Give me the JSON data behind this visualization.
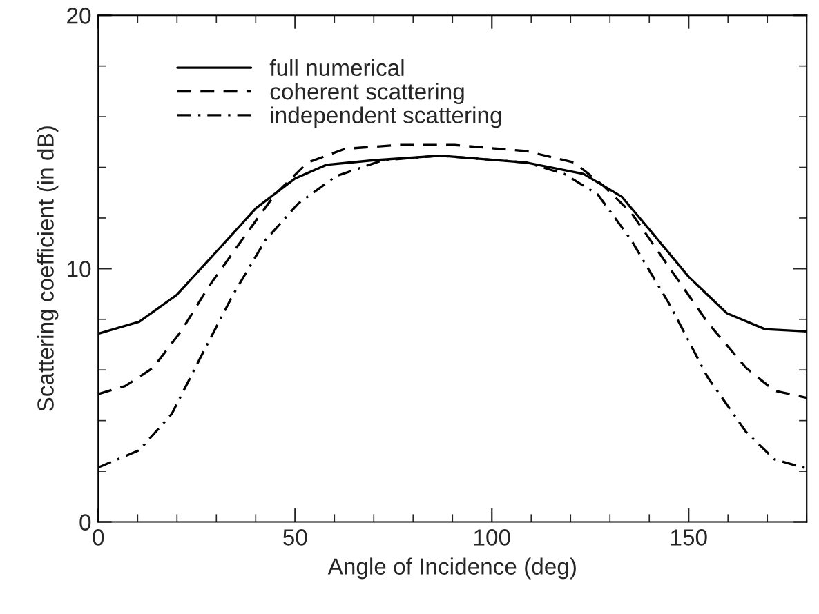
{
  "chart_data": {
    "type": "line",
    "xlabel": "Angle of Incidence (deg)",
    "ylabel": "Scattering coefficient (in dB)",
    "xlim": [
      0,
      180
    ],
    "xticks": [
      0,
      50,
      100,
      150
    ],
    "ylim": [
      0,
      20
    ],
    "yticks": [
      0,
      10,
      20
    ],
    "grid": false,
    "legend": "top left",
    "series": [
      {
        "name": "full numerical",
        "color": "#000000",
        "line_style": "solid",
        "x": [
          0,
          10.4,
          19.9,
          30.6,
          40.1,
          50,
          58,
          70,
          86.9,
          108.7,
          123.3,
          133,
          140.3,
          150,
          159.7,
          169.4,
          180
        ],
        "values": [
          7.43,
          7.9,
          8.96,
          10.77,
          12.39,
          13.56,
          14.1,
          14.28,
          14.46,
          14.19,
          13.74,
          12.84,
          11.49,
          9.68,
          8.24,
          7.61,
          7.52
        ]
      },
      {
        "name": "coherent scattering",
        "color": "#000000",
        "line_style": "dashed",
        "x": [
          0,
          6.8,
          13.9,
          21,
          28.2,
          36.5,
          44.9,
          53.2,
          62.7,
          75.8,
          90.6,
          108.7,
          120.9,
          128.2,
          135.4,
          145.1,
          154.8,
          164.6,
          171.8,
          180
        ],
        "values": [
          5.05,
          5.36,
          6.08,
          7.52,
          9.32,
          11.13,
          12.93,
          14.19,
          14.73,
          14.88,
          14.88,
          14.64,
          14.19,
          13.29,
          12.21,
          10.04,
          7.88,
          6.08,
          5.18,
          4.9
        ]
      },
      {
        "name": "independent scattering",
        "color": "#000000",
        "line_style": "dashdot",
        "x": [
          0,
          10.4,
          18.7,
          25.8,
          34.2,
          42.5,
          50.8,
          60.4,
          72.3,
          86.9,
          108.7,
          118.4,
          126.9,
          135.4,
          145.1,
          154.8,
          164.6,
          171.8,
          180
        ],
        "values": [
          2.15,
          2.83,
          4.27,
          6.44,
          8.96,
          11.13,
          12.57,
          13.65,
          14.28,
          14.46,
          14.19,
          13.74,
          12.93,
          11.13,
          8.6,
          5.72,
          3.55,
          2.47,
          2.11
        ]
      }
    ]
  }
}
